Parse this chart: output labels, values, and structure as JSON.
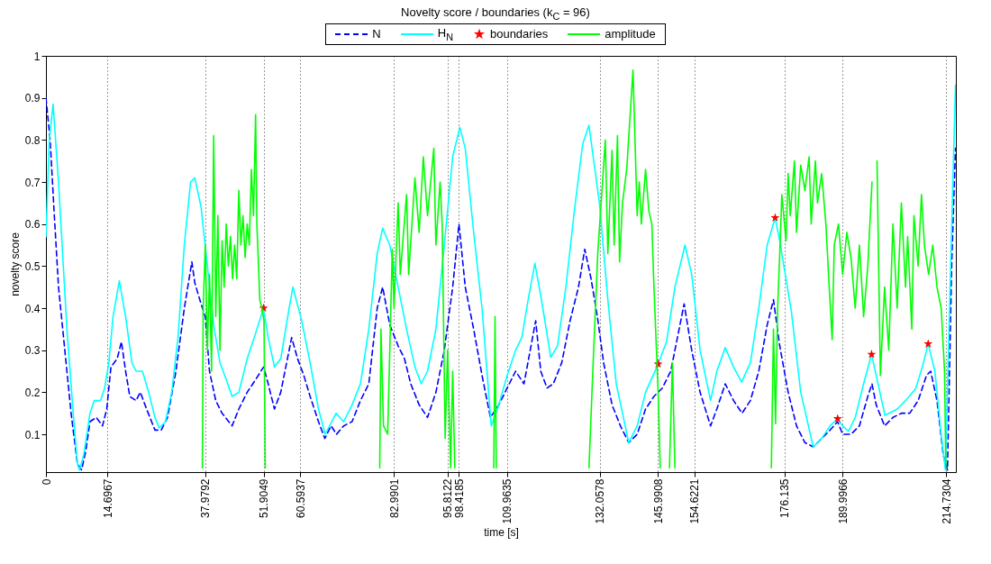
{
  "chart_data": {
    "type": "line",
    "title": "Novelty score / boundaries   (k$_{C}$ = 96)",
    "xlabel": "time [s]",
    "ylabel": "novelty score",
    "xlim": [
      0,
      217
    ],
    "ylim": [
      0.01,
      1
    ],
    "xticks": [
      0,
      14.6967,
      37.9792,
      51.9049,
      60.5937,
      82.9901,
      95.8122,
      98.4185,
      109.9635,
      132.0578,
      145.9908,
      154.6221,
      176.135,
      189.9966,
      214.7304
    ],
    "yticks": [
      0.1,
      0.2,
      0.3,
      0.4,
      0.5,
      0.6,
      0.7,
      0.8,
      0.9,
      1
    ],
    "grid": "x",
    "legend": "top",
    "series": [
      {
        "name": "N",
        "color": "#0000ff",
        "line_style": "dashed",
        "x": [
          0,
          1,
          2,
          3,
          4.5,
          6,
          7.5,
          8.5,
          9.5,
          10.5,
          12,
          13.5,
          14.5,
          15.5,
          17,
          18,
          19,
          20,
          21.5,
          22.5,
          24,
          26,
          27.5,
          29,
          31,
          33,
          34.8,
          35.5,
          37,
          38,
          39,
          40.5,
          42,
          44.4,
          46,
          48,
          50,
          51.9,
          53,
          54.5,
          56,
          58.6,
          60,
          61.5,
          63,
          65,
          66.5,
          68,
          69.3,
          71,
          73,
          75,
          77,
          79,
          80.3,
          82,
          84,
          85.5,
          87,
          89,
          91,
          93,
          95,
          97,
          98.5,
          100,
          102,
          104,
          106,
          108,
          110,
          112,
          114,
          116.8,
          118,
          119.5,
          121,
          123,
          125,
          127,
          128.5,
          130,
          131.5,
          133,
          135,
          137,
          139,
          141,
          143,
          145,
          147,
          149,
          151,
          152.2,
          154,
          156,
          158.5,
          160,
          162,
          164,
          166,
          168,
          170,
          172,
          173.5,
          175,
          177,
          179,
          181,
          183,
          185,
          187,
          188.8,
          190,
          192,
          194,
          196,
          197,
          198,
          200,
          202,
          204,
          206,
          208,
          210,
          211,
          212.5,
          214,
          215,
          216,
          216.9
        ],
        "values": [
          0.9,
          0.8,
          0.62,
          0.45,
          0.3,
          0.15,
          0.03,
          0.015,
          0.06,
          0.13,
          0.14,
          0.12,
          0.16,
          0.26,
          0.28,
          0.32,
          0.25,
          0.19,
          0.18,
          0.2,
          0.16,
          0.11,
          0.11,
          0.14,
          0.25,
          0.4,
          0.51,
          0.46,
          0.41,
          0.38,
          0.25,
          0.18,
          0.15,
          0.12,
          0.16,
          0.2,
          0.23,
          0.26,
          0.22,
          0.16,
          0.2,
          0.33,
          0.28,
          0.24,
          0.19,
          0.13,
          0.09,
          0.12,
          0.1,
          0.12,
          0.13,
          0.18,
          0.22,
          0.4,
          0.45,
          0.36,
          0.31,
          0.28,
          0.22,
          0.17,
          0.14,
          0.2,
          0.3,
          0.45,
          0.6,
          0.45,
          0.35,
          0.24,
          0.14,
          0.17,
          0.21,
          0.25,
          0.22,
          0.37,
          0.25,
          0.21,
          0.22,
          0.27,
          0.37,
          0.45,
          0.54,
          0.47,
          0.38,
          0.27,
          0.17,
          0.12,
          0.08,
          0.1,
          0.16,
          0.19,
          0.21,
          0.25,
          0.35,
          0.41,
          0.3,
          0.2,
          0.12,
          0.16,
          0.22,
          0.18,
          0.15,
          0.18,
          0.25,
          0.36,
          0.42,
          0.31,
          0.2,
          0.12,
          0.08,
          0.07,
          0.09,
          0.11,
          0.13,
          0.1,
          0.1,
          0.12,
          0.19,
          0.22,
          0.17,
          0.12,
          0.14,
          0.15,
          0.15,
          0.18,
          0.24,
          0.25,
          0.18,
          0.05,
          0.015,
          0.5,
          0.78
        ]
      },
      {
        "name": "H$_{N}$",
        "color": "#00ffff",
        "x": [
          0,
          0.8,
          1.7,
          3,
          5,
          6.5,
          7.5,
          8,
          9,
          10.5,
          11.5,
          13,
          14,
          15,
          16,
          17.5,
          19,
          20.5,
          21.5,
          23,
          24.5,
          26,
          27,
          28.5,
          30,
          31.5,
          33,
          34.5,
          35.5,
          37,
          38.5,
          40,
          41.5,
          43,
          44.4,
          46,
          48,
          50,
          51.9,
          53,
          54.5,
          56,
          58,
          58.9,
          61,
          63,
          65,
          66.6,
          69.2,
          71,
          73,
          75,
          77,
          79,
          80.3,
          82,
          84,
          86,
          88,
          89.5,
          91,
          93,
          95,
          97,
          98.7,
          100,
          102,
          104,
          106.2,
          108,
          110,
          112,
          113.5,
          115,
          116.6,
          118,
          120.4,
          122,
          124,
          126,
          128,
          129.5,
          132,
          134,
          136,
          139,
          141,
          143,
          146,
          148,
          150,
          152.4,
          154,
          156,
          158.5,
          160,
          162,
          164,
          165.9,
          168,
          170,
          172,
          173.9,
          175,
          177.8,
          180,
          183,
          185,
          187,
          188.8,
          190,
          191.4,
          193,
          195,
          196.9,
          198,
          200.1,
          203,
          205,
          207.4,
          209,
          210.4,
          212,
          213.5,
          214.5,
          215.5,
          216.9
        ],
        "values": [
          0.57,
          0.8,
          0.885,
          0.7,
          0.35,
          0.15,
          0.03,
          0.015,
          0.05,
          0.15,
          0.18,
          0.18,
          0.21,
          0.27,
          0.38,
          0.465,
          0.38,
          0.27,
          0.25,
          0.25,
          0.2,
          0.14,
          0.115,
          0.13,
          0.2,
          0.33,
          0.55,
          0.7,
          0.71,
          0.64,
          0.5,
          0.36,
          0.27,
          0.23,
          0.19,
          0.2,
          0.28,
          0.34,
          0.4,
          0.33,
          0.26,
          0.28,
          0.4,
          0.45,
          0.37,
          0.27,
          0.16,
          0.1,
          0.15,
          0.13,
          0.17,
          0.22,
          0.35,
          0.53,
          0.59,
          0.55,
          0.45,
          0.35,
          0.26,
          0.22,
          0.25,
          0.35,
          0.55,
          0.76,
          0.83,
          0.78,
          0.58,
          0.4,
          0.12,
          0.17,
          0.24,
          0.3,
          0.33,
          0.42,
          0.507,
          0.43,
          0.283,
          0.31,
          0.45,
          0.63,
          0.79,
          0.835,
          0.65,
          0.42,
          0.22,
          0.08,
          0.12,
          0.2,
          0.267,
          0.32,
          0.45,
          0.55,
          0.48,
          0.3,
          0.18,
          0.25,
          0.306,
          0.26,
          0.224,
          0.27,
          0.4,
          0.55,
          0.615,
          0.56,
          0.39,
          0.2,
          0.07,
          0.09,
          0.12,
          0.137,
          0.12,
          0.107,
          0.14,
          0.22,
          0.29,
          0.24,
          0.145,
          0.16,
          0.18,
          0.208,
          0.26,
          0.315,
          0.25,
          0.1,
          0.015,
          0.4,
          0.93
        ]
      },
      {
        "name": "boundaries",
        "type": "scatter",
        "color": "#ff0000",
        "marker": "star",
        "x": [
          51.9,
          146,
          173.9,
          188.8,
          196.9,
          210.4
        ],
        "values": [
          0.4,
          0.267,
          0.615,
          0.137,
          0.29,
          0.315
        ]
      },
      {
        "name": "amplitude",
        "color": "#00ff00",
        "x": [
          37.3,
          37.5,
          38,
          38.5,
          39,
          39.5,
          40,
          40.5,
          41,
          41.5,
          42,
          42.5,
          43,
          43.5,
          44,
          44.5,
          45,
          45.5,
          46,
          46.5,
          47,
          47.5,
          48,
          48.5,
          49,
          49.5,
          50,
          50.3,
          50.7,
          51,
          51.5,
          52,
          52.3,
          null,
          79.6,
          79.9,
          80.5,
          81.5,
          82.6,
          83,
          84,
          84.5,
          86,
          86.5,
          88,
          89,
          90,
          91,
          92.5,
          93,
          94,
          94.5,
          95.2,
          95.8,
          96.5,
          97,
          97.5,
          null,
          106.8,
          107.1,
          107.4,
          null,
          129.5,
          130.5,
          131.6,
          133.4,
          134,
          135,
          135.5,
          136.3,
          136.8,
          137.5,
          138.5,
          140,
          141,
          141.5,
          142,
          143,
          143.8,
          144.5,
          145,
          146,
          146.5,
          null,
          148.7,
          149.4,
          150,
          null,
          173,
          173.5,
          174,
          174.5,
          175,
          175.5,
          176.5,
          177,
          177.5,
          178.5,
          179,
          180,
          181,
          182,
          182.5,
          183.5,
          184,
          185,
          186,
          186.8,
          187.5,
          188,
          189,
          190,
          191,
          192,
          193,
          194,
          195,
          196,
          197,
          197.7,
          198.2,
          199,
          200,
          201,
          202,
          203,
          204,
          205,
          205.5,
          206.5,
          207,
          208,
          208.8,
          209.5,
          210.5,
          211.5,
          212.5,
          213.5,
          214.3,
          214.6
        ],
        "values": [
          0.02,
          0.4,
          0.55,
          0.3,
          0.48,
          0.25,
          0.81,
          0.38,
          0.62,
          0.3,
          0.56,
          0.45,
          0.6,
          0.5,
          0.57,
          0.47,
          0.55,
          0.47,
          0.68,
          0.55,
          0.62,
          0.52,
          0.6,
          0.55,
          0.73,
          0.62,
          0.86,
          0.6,
          0.5,
          0.42,
          0.4,
          0.37,
          0.02,
          null,
          0.02,
          0.35,
          0.12,
          0.1,
          0.54,
          0.4,
          0.65,
          0.48,
          0.67,
          0.48,
          0.71,
          0.58,
          0.76,
          0.62,
          0.78,
          0.55,
          0.7,
          0.6,
          0.09,
          0.3,
          0.02,
          0.25,
          0.02,
          null,
          0.02,
          0.38,
          0.02,
          null,
          0.02,
          0.27,
          0.53,
          0.8,
          0.53,
          0.775,
          0.55,
          0.81,
          0.51,
          0.65,
          0.73,
          0.966,
          0.62,
          0.7,
          0.6,
          0.73,
          0.63,
          0.6,
          0.45,
          0.2,
          0.02,
          null,
          0.02,
          0.27,
          0.02,
          null,
          0.02,
          0.35,
          0.125,
          0.4,
          0.53,
          0.67,
          0.56,
          0.72,
          0.62,
          0.75,
          0.58,
          0.74,
          0.68,
          0.76,
          0.6,
          0.75,
          0.65,
          0.72,
          0.6,
          0.45,
          0.325,
          0.55,
          0.6,
          0.48,
          0.58,
          0.52,
          0.4,
          0.55,
          0.38,
          0.5,
          0.7,
          null,
          0.75,
          0.24,
          0.45,
          0.3,
          0.6,
          0.4,
          0.65,
          0.45,
          0.57,
          0.35,
          0.62,
          0.5,
          0.67,
          0.55,
          0.48,
          0.55,
          0.45,
          0.4,
          0.25,
          0.02
        ]
      }
    ]
  }
}
